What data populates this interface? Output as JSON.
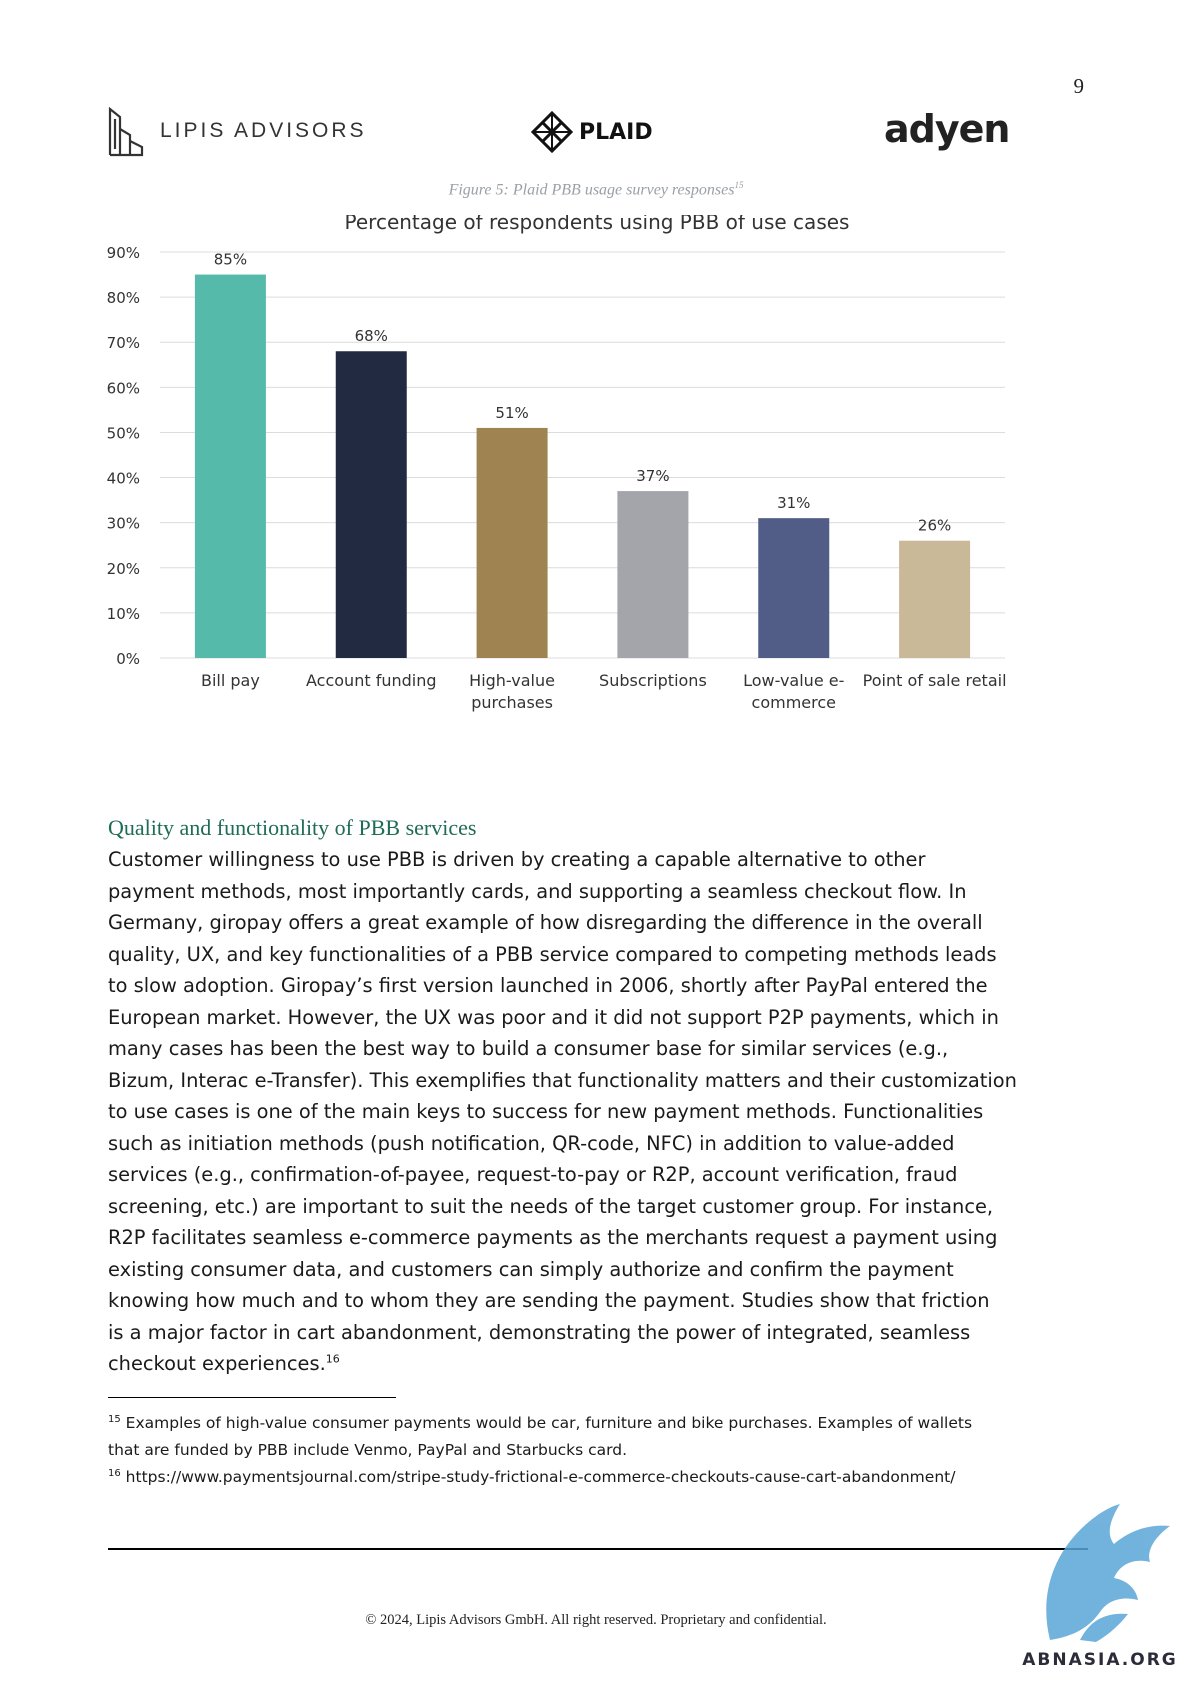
{
  "page_number": "9",
  "header": {
    "lipis_name": "LIPIS ADVISORS",
    "plaid_name": "PLAID",
    "adyen_name": "adyen"
  },
  "figure": {
    "caption": "Figure 5: Plaid PBB usage survey responses",
    "caption_ref": "15"
  },
  "chart_data": {
    "type": "bar",
    "title": "Percentage of respondents using PBB of use cases",
    "categories": [
      [
        "Bill pay"
      ],
      [
        "Account funding"
      ],
      [
        "High-value",
        "purchases"
      ],
      [
        "Subscriptions"
      ],
      [
        "Low-value e-",
        "commerce"
      ],
      [
        "Point of sale retail"
      ]
    ],
    "values": [
      85,
      68,
      51,
      37,
      31,
      26
    ],
    "value_labels": [
      "85%",
      "68%",
      "51%",
      "37%",
      "31%",
      "26%"
    ],
    "colors": [
      "#56baab",
      "#212a40",
      "#9f8452",
      "#a4a5ab",
      "#515d87",
      "#c9b998"
    ],
    "ylim": [
      0,
      90
    ],
    "yticks": [
      0,
      10,
      20,
      30,
      40,
      50,
      60,
      70,
      80,
      90
    ],
    "ytick_labels": [
      "0%",
      "10%",
      "20%",
      "30%",
      "40%",
      "50%",
      "60%",
      "70%",
      "80%",
      "90%"
    ],
    "grid": true,
    "gridline_color": "#dcdcdc",
    "xlabel": "",
    "ylabel": ""
  },
  "section": {
    "heading": "Quality and functionality of PBB services",
    "body_lines": [
      "Customer willingness to use PBB is driven by creating a capable alternative to other",
      "payment methods, most importantly cards, and supporting a seamless checkout flow. In",
      "Germany, giropay offers a great example of how disregarding the difference in the overall",
      "quality, UX, and key functionalities of a PBB service compared to competing methods leads",
      "to slow adoption. Giropay’s first version launched in 2006, shortly after PayPal entered the",
      "European market. However, the UX was poor and it did not support P2P payments, which in",
      "many cases has been the best way to build a consumer base for similar services (e.g.,",
      "Bizum, Interac e-Transfer). This exemplifies that functionality matters and their customization",
      "to use cases is one of the main keys to success for new payment methods. Functionalities",
      "such as initiation methods (push notification, QR-code, NFC) in addition to value-added",
      "services (e.g., confirmation-of-payee, request-to-pay or R2P, account verification, fraud",
      "screening, etc.) are important to suit the needs of the target customer group. For instance,",
      "R2P facilitates seamless e-commerce payments as the merchants request a payment using",
      "existing consumer data, and customers can simply authorize and confirm the payment",
      "knowing how much and to whom they are sending the payment. Studies show that friction",
      "is a major factor in cart abandonment, demonstrating the power of integrated, seamless",
      "checkout experiences."
    ],
    "body_ref": "16"
  },
  "footnotes": {
    "fn15_num": "15",
    "fn15_line1": "Examples of high-value consumer payments would be car, furniture and bike purchases. Examples of wallets",
    "fn15_line2": "that are funded by PBB include Venmo, PayPal and Starbucks card.",
    "fn16_num": "16",
    "fn16_text": "https://www.paymentsjournal.com/stripe-study-frictional-e-commerce-checkouts-cause-cart-abandonment/"
  },
  "footer": {
    "copyright": "© 2024, Lipis Advisors GmbH. All right reserved. Proprietary and confidential."
  },
  "watermark": {
    "text": "ABNASIA.ORG",
    "color": "#5aa6d8"
  }
}
